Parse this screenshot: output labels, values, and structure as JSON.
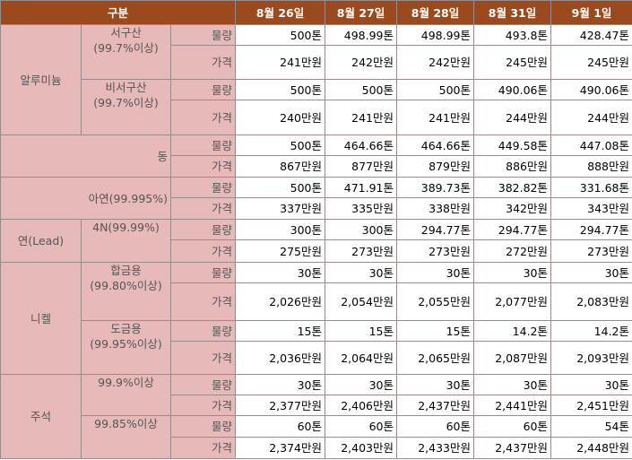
{
  "header": {
    "label": "구분",
    "dates": [
      "8월 26일",
      "8월 27일",
      "8월 28일",
      "8월 31일",
      "9월 1일"
    ]
  },
  "groups": [
    {
      "name": "알루미늄",
      "subs": [
        {
          "name": "서구산",
          "spec": "(99.7%이상)",
          "rows": [
            {
              "item": "물량",
              "values": [
                "500톤",
                "498.99톤",
                "498.99톤",
                "493.8톤",
                "428.47톤"
              ]
            },
            {
              "item": "가격",
              "values": [
                "241만원",
                "242만원",
                "242만원",
                "245만원",
                "245만원"
              ]
            }
          ]
        },
        {
          "name": "비서구산",
          "spec": "(99.7%이상)",
          "rows": [
            {
              "item": "물량",
              "values": [
                "500톤",
                "500톤",
                "500톤",
                "490.06톤",
                "490.06톤"
              ]
            },
            {
              "item": "가격",
              "values": [
                "240만원",
                "241만원",
                "241만원",
                "244만원",
                "244만원"
              ]
            }
          ]
        }
      ]
    },
    {
      "name": "동",
      "rows": [
        {
          "item": "물량",
          "values": [
            "500톤",
            "464.66톤",
            "464.66톤",
            "449.58톤",
            "447.08톤"
          ]
        },
        {
          "item": "가격",
          "values": [
            "867만원",
            "877만원",
            "879만원",
            "886만원",
            "888만원"
          ]
        }
      ]
    },
    {
      "name": "아연(99.995%)",
      "rows": [
        {
          "item": "물량",
          "values": [
            "500톤",
            "471.91톤",
            "389.73톤",
            "382.82톤",
            "331.68톤"
          ]
        },
        {
          "item": "가격",
          "values": [
            "337만원",
            "335만원",
            "338만원",
            "342만원",
            "343만원"
          ]
        }
      ]
    },
    {
      "name": "연(Lead)",
      "subs": [
        {
          "name": "4N(99.99%)",
          "rows": [
            {
              "item": "물량",
              "values": [
                "300톤",
                "300톤",
                "294.77톤",
                "294.77톤",
                "294.77톤"
              ]
            },
            {
              "item": "가격",
              "values": [
                "275만원",
                "273만원",
                "273만원",
                "272만원",
                "273만원"
              ]
            }
          ]
        }
      ]
    },
    {
      "name": "니켈",
      "subs": [
        {
          "name": "합금용",
          "spec": "(99.80%이상)",
          "rows": [
            {
              "item": "물량",
              "values": [
                "30톤",
                "30톤",
                "30톤",
                "30톤",
                "30톤"
              ]
            },
            {
              "item": "가격",
              "values": [
                "2,026만원",
                "2,054만원",
                "2,055만원",
                "2,077만원",
                "2,083만원"
              ]
            }
          ]
        },
        {
          "name": "도금용",
          "spec": "(99.95%이상)",
          "rows": [
            {
              "item": "물량",
              "values": [
                "15톤",
                "15톤",
                "15톤",
                "14.2톤",
                "14.2톤"
              ]
            },
            {
              "item": "가격",
              "values": [
                "2,036만원",
                "2,064만원",
                "2,065만원",
                "2,087만원",
                "2,093만원"
              ]
            }
          ]
        }
      ]
    },
    {
      "name": "주석",
      "subs": [
        {
          "name": "99.9%이상",
          "rows": [
            {
              "item": "물량",
              "values": [
                "30톤",
                "30톤",
                "30톤",
                "30톤",
                "30톤"
              ]
            },
            {
              "item": "가격",
              "values": [
                "2,377만원",
                "2,406만원",
                "2,437만원",
                "2,441만원",
                "2,451만원"
              ]
            }
          ]
        },
        {
          "name": "99.85%이상",
          "rows": [
            {
              "item": "물량",
              "values": [
                "60톤",
                "60톤",
                "60톤",
                "60톤",
                "54톤"
              ]
            },
            {
              "item": "가격",
              "values": [
                "2,374만원",
                "2,403만원",
                "2,433만원",
                "2,437만원",
                "2,448만원"
              ]
            }
          ]
        }
      ]
    }
  ]
}
